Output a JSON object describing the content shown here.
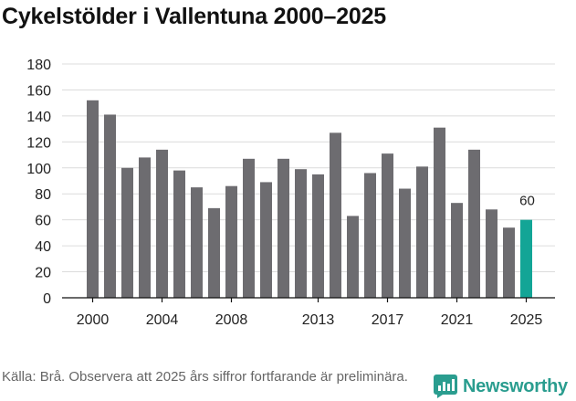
{
  "title": "Cykelstölder i Vallentuna 2000–2025",
  "source": "Källa: Brå. Observera att 2025 års siffror fortfarande är preliminära.",
  "brand": {
    "name": "Newsworthy",
    "icon": "newsworthy-logo-icon"
  },
  "colors": {
    "bar": "#6d6c70",
    "highlight": "#13a596",
    "grid": "#dcdcdc",
    "axis": "#111111",
    "brand": "#2a9d8f"
  },
  "chart_data": {
    "type": "bar",
    "title": "Cykelstölder i Vallentuna 2000–2025",
    "xlabel": "",
    "ylabel": "",
    "ylim": [
      0,
      180
    ],
    "yticks": [
      "0",
      "20",
      "40",
      "60",
      "80",
      "100",
      "120",
      "140",
      "160",
      "180"
    ],
    "xtick_labels": [
      "2000",
      "2004",
      "2008",
      "2013",
      "2017",
      "2021",
      "2025"
    ],
    "categories": [
      "2000",
      "2001",
      "2002",
      "2003",
      "2004",
      "2005",
      "2006",
      "2007",
      "2008",
      "2009",
      "2010",
      "2011",
      "2012",
      "2013",
      "2014",
      "2015",
      "2016",
      "2017",
      "2018",
      "2019",
      "2020",
      "2021",
      "2022",
      "2023",
      "2024",
      "2025"
    ],
    "values": [
      152,
      141,
      100,
      108,
      114,
      98,
      85,
      69,
      86,
      107,
      89,
      107,
      99,
      95,
      127,
      63,
      96,
      111,
      84,
      101,
      131,
      73,
      114,
      68,
      54,
      60
    ],
    "highlight_index": 25,
    "data_labels": [
      {
        "category": "2025",
        "text": "60"
      }
    ]
  }
}
